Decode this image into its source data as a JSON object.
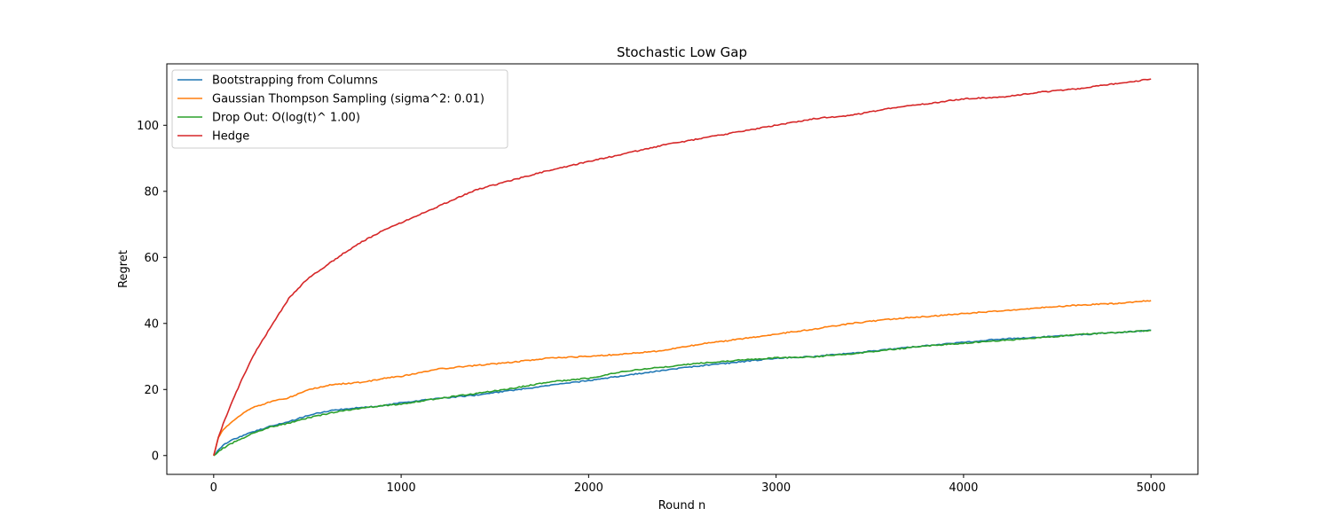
{
  "chart_data": {
    "type": "line",
    "title": "Stochastic Low Gap",
    "xlabel": "Round n",
    "ylabel": "Regret",
    "xlim": [
      -250,
      5250
    ],
    "ylim": [
      -5.7,
      118.6
    ],
    "xticks": [
      0,
      1000,
      2000,
      3000,
      4000,
      5000
    ],
    "yticks": [
      0,
      20,
      40,
      60,
      80,
      100
    ],
    "grid": false,
    "legend_position": "upper-left",
    "series": [
      {
        "name": "Bootstrapping from Columns",
        "color": "#1f77b4",
        "x": [
          0,
          50,
          100,
          200,
          300,
          400,
          500,
          600,
          700,
          800,
          900,
          1000,
          1200,
          1400,
          1600,
          1800,
          2000,
          2200,
          2400,
          2600,
          2800,
          3000,
          3200,
          3400,
          3600,
          3800,
          4000,
          4200,
          4400,
          4600,
          4800,
          5000
        ],
        "y": [
          0,
          3.2,
          4.8,
          7.0,
          8.8,
          10.2,
          12.1,
          13.4,
          14.1,
          14.6,
          15.0,
          16.0,
          17.3,
          18.3,
          19.8,
          21.3,
          22.7,
          24.3,
          25.8,
          27.2,
          28.3,
          29.5,
          30.0,
          31.0,
          32.1,
          33.3,
          34.3,
          35.3,
          35.8,
          36.5,
          37.2,
          37.9
        ]
      },
      {
        "name": "Gaussian Thompson Sampling (sigma^2: 0.01)",
        "color": "#ff7f0e",
        "x": [
          0,
          25,
          50,
          100,
          150,
          200,
          300,
          400,
          500,
          600,
          700,
          800,
          900,
          1000,
          1200,
          1400,
          1600,
          1800,
          2000,
          2200,
          2400,
          2600,
          2800,
          3000,
          3200,
          3400,
          3600,
          3800,
          4000,
          4200,
          4400,
          4600,
          4800,
          5000
        ],
        "y": [
          0,
          5.5,
          7.8,
          10.4,
          12.5,
          14.4,
          16.2,
          17.5,
          19.8,
          21.2,
          21.8,
          22.2,
          23.3,
          24.0,
          26.2,
          27.3,
          28.3,
          29.6,
          30.0,
          30.8,
          31.8,
          33.8,
          35.2,
          36.8,
          38.3,
          40.0,
          41.2,
          42.1,
          43.0,
          43.8,
          44.7,
          45.5,
          46.0,
          46.9
        ]
      },
      {
        "name": "Drop Out: O(log(t)^ 1.00)",
        "color": "#2ca02c",
        "x": [
          0,
          50,
          100,
          200,
          300,
          400,
          500,
          600,
          700,
          800,
          900,
          1000,
          1200,
          1400,
          1600,
          1800,
          2000,
          2200,
          2400,
          2600,
          2800,
          3000,
          3200,
          3400,
          3600,
          3800,
          4000,
          4200,
          4400,
          4600,
          4800,
          5000
        ],
        "y": [
          0,
          2.2,
          3.8,
          6.5,
          8.6,
          9.8,
          11.3,
          12.6,
          13.7,
          14.4,
          15.1,
          15.6,
          17.3,
          18.8,
          20.4,
          22.4,
          23.4,
          25.6,
          26.8,
          28.0,
          28.9,
          29.6,
          29.9,
          30.8,
          32.0,
          33.2,
          34.0,
          34.8,
          35.6,
          36.6,
          37.2,
          37.9
        ]
      },
      {
        "name": "Hedge",
        "color": "#d62728",
        "x": [
          0,
          25,
          50,
          100,
          150,
          200,
          250,
          300,
          350,
          400,
          500,
          600,
          700,
          800,
          900,
          1000,
          1200,
          1400,
          1600,
          1800,
          2000,
          2200,
          2400,
          2600,
          2800,
          3000,
          3200,
          3400,
          3600,
          3800,
          4000,
          4200,
          4400,
          4600,
          4800,
          5000
        ],
        "y": [
          0,
          5.5,
          9.5,
          16.5,
          23.0,
          29.0,
          34.0,
          38.5,
          43.0,
          47.5,
          53.5,
          57.5,
          61.5,
          65.0,
          68.0,
          70.5,
          75.5,
          80.5,
          83.5,
          86.5,
          89.0,
          91.5,
          94.0,
          96.0,
          98.0,
          100.0,
          102.0,
          103.0,
          105.0,
          106.5,
          108.0,
          108.5,
          110.0,
          111.0,
          112.5,
          114.0
        ]
      }
    ]
  }
}
